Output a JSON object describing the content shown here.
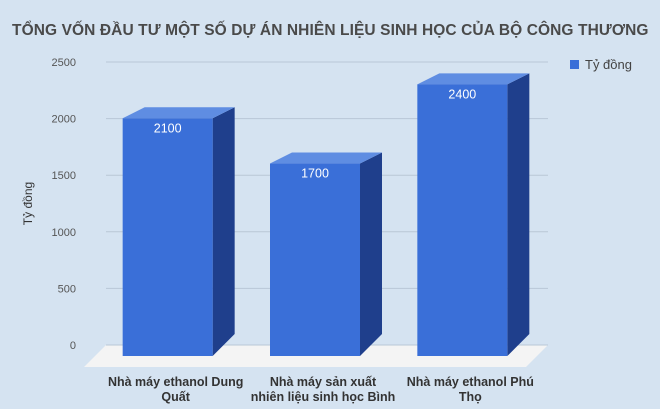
{
  "chart_data": {
    "type": "bar",
    "title": "TỔNG VỐN ĐẦU TƯ MỘT SỐ DỰ ÁN NHIÊN LIỆU SINH HỌC CỦA BỘ CÔNG THƯƠNG",
    "categories": [
      [
        "Nhà máy ethanol Dung",
        "Quất"
      ],
      [
        "Nhà máy sản xuất",
        "nhiên liệu sinh học Bình"
      ],
      [
        "Nhà máy ethanol Phú",
        "Thọ"
      ]
    ],
    "series": [
      {
        "name": "Tỷ đồng",
        "values": [
          2100,
          1700,
          2400
        ],
        "labels": [
          "2100",
          "1700",
          "2400"
        ]
      }
    ],
    "ylabel": "Tỷ đồng",
    "xlabel": "",
    "ylim": [
      0,
      2500
    ],
    "yticks": [
      0,
      500,
      1000,
      1500,
      2000,
      2500
    ],
    "grid": true,
    "legend_position": "top-right",
    "style": "3d",
    "colors": {
      "front": "#3a6fd8",
      "side": "#1f3f8c",
      "top": "#5f8de2",
      "floor": "#f4f4f4",
      "grid": "#b9c7d6"
    }
  }
}
